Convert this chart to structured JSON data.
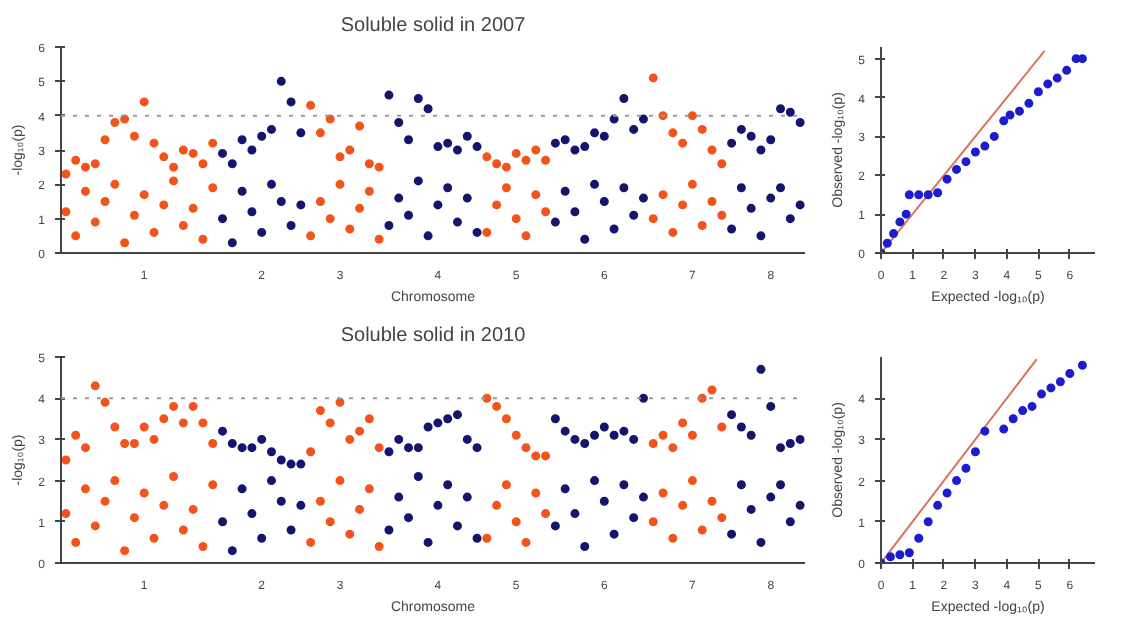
{
  "chart_data": [
    {
      "type": "scatter",
      "title": "Soluble solid in 2007",
      "xlabel": "Chromosome",
      "ylabel": "-log₁₀(p)",
      "ylim": [
        0,
        6
      ],
      "yticks": [
        0,
        1,
        2,
        3,
        4,
        5,
        6
      ],
      "categories": [
        null,
        null,
        null,
        null,
        null,
        null,
        null,
        null,
        "1",
        null,
        null,
        null,
        null,
        null,
        null,
        null,
        null,
        null,
        null,
        null,
        "2",
        null,
        null,
        null,
        null,
        null,
        null,
        null,
        "3",
        null,
        null,
        null,
        null,
        null,
        null,
        null,
        null,
        null,
        "4",
        null,
        null,
        null,
        null,
        null,
        null,
        null,
        "5",
        null,
        null,
        null,
        null,
        null,
        null,
        null,
        null,
        "6",
        null,
        null,
        null,
        null,
        null,
        null,
        null,
        null,
        "7",
        null,
        null,
        null,
        null,
        null,
        null,
        null,
        "8",
        null,
        null,
        null
      ],
      "grid": false,
      "marker": "circle",
      "ref_lines": [
        {
          "axis": "y",
          "value": 4,
          "color": "#9a9a9a",
          "line_style": "dotted"
        }
      ],
      "series": [
        {
          "color": "#f2541b",
          "values": [
            2.3,
            2.7,
            2.5,
            2.6,
            3.3,
            3.8,
            3.9,
            3.4,
            4.4,
            3.2,
            2.8,
            2.5,
            3.0,
            2.9,
            2.6,
            3.2,
            null,
            null,
            null,
            null,
            null,
            null,
            null,
            null,
            null,
            4.3,
            3.5,
            3.9,
            2.8,
            3.0,
            3.7,
            2.6,
            2.5,
            null,
            null,
            null,
            null,
            null,
            null,
            null,
            null,
            null,
            null,
            2.8,
            2.6,
            2.5,
            2.9,
            2.7,
            3.0,
            2.7,
            null,
            null,
            null,
            null,
            null,
            null,
            null,
            null,
            null,
            null,
            5.1,
            4.0,
            3.5,
            3.2,
            4.0,
            3.6,
            3.0,
            2.6,
            null,
            null,
            null,
            null,
            null,
            null,
            null,
            null
          ]
        },
        {
          "color": "#f2541b",
          "values": [
            1.2,
            0.5,
            1.8,
            0.9,
            1.5,
            2.0,
            0.3,
            1.1,
            1.7,
            0.6,
            1.4,
            2.1,
            0.8,
            1.3,
            0.4,
            1.9,
            null,
            null,
            null,
            null,
            null,
            null,
            null,
            null,
            null,
            0.5,
            1.5,
            1.0,
            2.0,
            0.7,
            1.3,
            1.8,
            0.4,
            null,
            null,
            null,
            null,
            null,
            null,
            null,
            null,
            null,
            null,
            0.6,
            1.4,
            1.9,
            1.0,
            0.5,
            1.7,
            1.2,
            null,
            null,
            null,
            null,
            null,
            null,
            null,
            null,
            null,
            null,
            1.0,
            1.7,
            0.6,
            1.4,
            2.0,
            0.8,
            1.5,
            1.1,
            null,
            null,
            null,
            null,
            null,
            null,
            null,
            null
          ]
        },
        {
          "color": "#15156e",
          "values": [
            null,
            null,
            null,
            null,
            null,
            null,
            null,
            null,
            null,
            null,
            null,
            null,
            null,
            null,
            null,
            null,
            2.9,
            2.6,
            3.3,
            3.0,
            3.4,
            3.6,
            5.0,
            4.4,
            3.5,
            null,
            null,
            null,
            null,
            null,
            null,
            null,
            null,
            4.6,
            3.8,
            3.3,
            4.5,
            4.2,
            3.1,
            3.2,
            3.0,
            3.4,
            3.1,
            null,
            null,
            null,
            null,
            null,
            null,
            null,
            3.2,
            3.3,
            3.0,
            3.1,
            3.5,
            3.4,
            3.9,
            4.5,
            3.6,
            3.9,
            null,
            null,
            null,
            null,
            null,
            null,
            null,
            null,
            3.2,
            3.6,
            3.4,
            3.0,
            3.3,
            4.2,
            4.1,
            3.8
          ]
        },
        {
          "color": "#15156e",
          "values": [
            null,
            null,
            null,
            null,
            null,
            null,
            null,
            null,
            null,
            null,
            null,
            null,
            null,
            null,
            null,
            null,
            1.0,
            0.3,
            1.8,
            1.2,
            0.6,
            2.0,
            1.5,
            0.8,
            1.4,
            null,
            null,
            null,
            null,
            null,
            null,
            null,
            null,
            0.8,
            1.6,
            1.1,
            2.1,
            0.5,
            1.4,
            1.9,
            0.9,
            1.6,
            0.6,
            null,
            null,
            null,
            null,
            null,
            null,
            null,
            0.9,
            1.8,
            1.2,
            0.4,
            2.0,
            1.5,
            0.7,
            1.9,
            1.1,
            1.6,
            null,
            null,
            null,
            null,
            null,
            null,
            null,
            null,
            0.7,
            1.9,
            1.3,
            0.5,
            1.6,
            1.9,
            1.0,
            1.4
          ]
        }
      ]
    },
    {
      "type": "scatter",
      "xlabel": "Expected -log₁₀(p)",
      "ylabel": "Observed -log₁₀(p)",
      "xlim": [
        0,
        6.8
      ],
      "ylim": [
        0,
        5.3
      ],
      "xticks": [
        0,
        1,
        2,
        3,
        4,
        5,
        6
      ],
      "yticks": [
        0,
        1,
        2,
        3,
        4,
        5
      ],
      "grid": false,
      "marker": "circle",
      "series": [
        {
          "type": "line",
          "marker": "none",
          "color": "#d9735a",
          "x": [
            0,
            5.2
          ],
          "values": [
            0,
            5.2
          ]
        },
        {
          "color": "#1c1cd0",
          "x": [
            0,
            0.2,
            0.4,
            0.6,
            0.8,
            0.9,
            1.2,
            1.5,
            1.8,
            2.1,
            2.4,
            2.7,
            3.0,
            3.3,
            3.6,
            3.9,
            4.1,
            4.4,
            4.7,
            5.0,
            5.3,
            5.6,
            5.9,
            6.2,
            6.4
          ],
          "values": [
            0,
            0.25,
            0.5,
            0.8,
            1.0,
            1.5,
            1.5,
            1.5,
            1.55,
            1.9,
            2.15,
            2.35,
            2.6,
            2.75,
            3.0,
            3.4,
            3.55,
            3.65,
            3.85,
            4.15,
            4.35,
            4.5,
            4.7,
            5.0,
            5.0
          ]
        }
      ]
    },
    {
      "type": "scatter",
      "title": "Soluble solid in 2010",
      "xlabel": "Chromosome",
      "ylabel": "-log₁₀(p)",
      "ylim": [
        0,
        5
      ],
      "yticks": [
        0,
        1,
        2,
        3,
        4,
        5
      ],
      "categories": [
        null,
        null,
        null,
        null,
        null,
        null,
        null,
        null,
        "1",
        null,
        null,
        null,
        null,
        null,
        null,
        null,
        null,
        null,
        null,
        null,
        "2",
        null,
        null,
        null,
        null,
        null,
        null,
        null,
        "3",
        null,
        null,
        null,
        null,
        null,
        null,
        null,
        null,
        null,
        "4",
        null,
        null,
        null,
        null,
        null,
        null,
        null,
        "5",
        null,
        null,
        null,
        null,
        null,
        null,
        null,
        null,
        "6",
        null,
        null,
        null,
        null,
        null,
        null,
        null,
        null,
        "7",
        null,
        null,
        null,
        null,
        null,
        null,
        null,
        "8",
        null,
        null,
        null
      ],
      "grid": false,
      "marker": "circle",
      "ref_lines": [
        {
          "axis": "y",
          "value": 4,
          "color": "#9a9a9a",
          "line_style": "dotted"
        }
      ],
      "series": [
        {
          "color": "#f2541b",
          "values": [
            2.5,
            3.1,
            2.8,
            4.3,
            3.9,
            3.3,
            2.9,
            2.9,
            3.3,
            3.0,
            3.5,
            3.8,
            3.4,
            3.8,
            3.4,
            2.9,
            null,
            null,
            null,
            null,
            null,
            null,
            null,
            null,
            null,
            2.7,
            3.7,
            3.4,
            3.9,
            3.0,
            3.2,
            3.5,
            2.8,
            null,
            null,
            null,
            null,
            null,
            null,
            null,
            null,
            null,
            null,
            4.0,
            3.8,
            3.5,
            3.1,
            2.8,
            2.6,
            2.6,
            null,
            null,
            null,
            null,
            null,
            null,
            null,
            null,
            null,
            null,
            2.9,
            3.1,
            2.8,
            3.4,
            3.1,
            4.0,
            4.2,
            3.3,
            null,
            null,
            null,
            null,
            null,
            null,
            null,
            null
          ]
        },
        {
          "color": "#f2541b",
          "values": [
            1.2,
            0.5,
            1.8,
            0.9,
            1.5,
            2.0,
            0.3,
            1.1,
            1.7,
            0.6,
            1.4,
            2.1,
            0.8,
            1.3,
            0.4,
            1.9,
            null,
            null,
            null,
            null,
            null,
            null,
            null,
            null,
            null,
            0.5,
            1.5,
            1.0,
            2.0,
            0.7,
            1.3,
            1.8,
            0.4,
            null,
            null,
            null,
            null,
            null,
            null,
            null,
            null,
            null,
            null,
            0.6,
            1.4,
            1.9,
            1.0,
            0.5,
            1.7,
            1.2,
            null,
            null,
            null,
            null,
            null,
            null,
            null,
            null,
            null,
            null,
            1.0,
            1.7,
            0.6,
            1.4,
            2.0,
            0.8,
            1.5,
            1.1,
            null,
            null,
            null,
            null,
            null,
            null,
            null,
            null
          ]
        },
        {
          "color": "#15156e",
          "values": [
            null,
            null,
            null,
            null,
            null,
            null,
            null,
            null,
            null,
            null,
            null,
            null,
            null,
            null,
            null,
            null,
            3.2,
            2.9,
            2.8,
            2.8,
            3.0,
            2.7,
            2.5,
            2.4,
            2.4,
            null,
            null,
            null,
            null,
            null,
            null,
            null,
            null,
            2.7,
            3.0,
            2.8,
            2.8,
            3.3,
            3.4,
            3.5,
            3.6,
            3.0,
            2.8,
            null,
            null,
            null,
            null,
            null,
            null,
            null,
            3.5,
            3.2,
            3.0,
            2.9,
            3.1,
            3.3,
            3.1,
            3.2,
            3.0,
            4.0,
            null,
            null,
            null,
            null,
            null,
            null,
            null,
            null,
            3.6,
            3.3,
            3.1,
            4.7,
            3.8,
            2.8,
            2.9,
            3.0
          ]
        },
        {
          "color": "#15156e",
          "values": [
            null,
            null,
            null,
            null,
            null,
            null,
            null,
            null,
            null,
            null,
            null,
            null,
            null,
            null,
            null,
            null,
            1.0,
            0.3,
            1.8,
            1.2,
            0.6,
            2.0,
            1.5,
            0.8,
            1.4,
            null,
            null,
            null,
            null,
            null,
            null,
            null,
            null,
            0.8,
            1.6,
            1.1,
            2.1,
            0.5,
            1.4,
            1.9,
            0.9,
            1.6,
            0.6,
            null,
            null,
            null,
            null,
            null,
            null,
            null,
            0.9,
            1.8,
            1.2,
            0.4,
            2.0,
            1.5,
            0.7,
            1.9,
            1.1,
            1.6,
            null,
            null,
            null,
            null,
            null,
            null,
            null,
            null,
            0.7,
            1.9,
            1.3,
            0.5,
            1.6,
            1.9,
            1.0,
            1.4
          ]
        }
      ]
    },
    {
      "type": "scatter",
      "xlabel": "Expected -log₁₀(p)",
      "ylabel": "Observed -log₁₀(p)",
      "xlim": [
        0,
        6.8
      ],
      "ylim": [
        0,
        5
      ],
      "xticks": [
        0,
        1,
        2,
        3,
        4,
        5,
        6
      ],
      "yticks": [
        0,
        1,
        2,
        3,
        4
      ],
      "grid": false,
      "marker": "circle",
      "series": [
        {
          "type": "line",
          "marker": "none",
          "color": "#d9735a",
          "x": [
            0,
            4.95
          ],
          "values": [
            0,
            4.95
          ]
        },
        {
          "color": "#1c1cd0",
          "x": [
            0,
            0.3,
            0.6,
            0.9,
            1.2,
            1.5,
            1.8,
            2.1,
            2.4,
            2.7,
            3.0,
            3.3,
            3.9,
            4.2,
            4.5,
            4.8,
            5.1,
            5.4,
            5.7,
            6.0,
            6.4
          ],
          "values": [
            0,
            0.15,
            0.2,
            0.25,
            0.6,
            1.0,
            1.4,
            1.7,
            2.0,
            2.3,
            2.7,
            3.2,
            3.25,
            3.5,
            3.7,
            3.8,
            4.1,
            4.25,
            4.4,
            4.6,
            4.8
          ]
        }
      ]
    }
  ]
}
